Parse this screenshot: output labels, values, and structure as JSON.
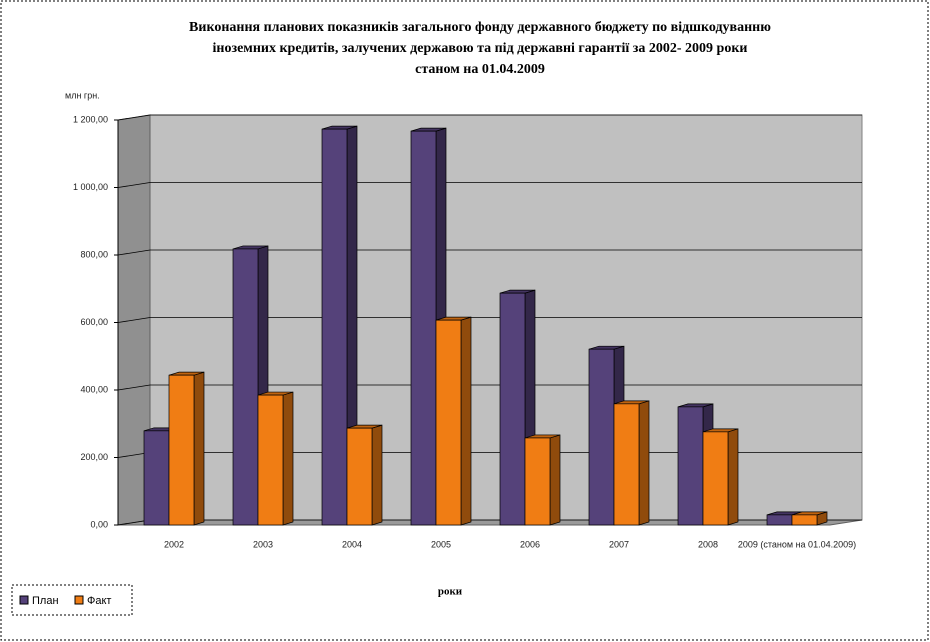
{
  "chart_data": {
    "type": "bar3d",
    "title": [
      "Виконання планових показників загального фонду державного бюджету по відшкодуванню",
      "іноземних кредитів, залучених державою та під державні гарантії за 2002- 2009 роки",
      "станом на 01.04.2009"
    ],
    "y_label": "млн грн.",
    "x_label": "роки",
    "categories": [
      "2002",
      "2003",
      "2004",
      "2005",
      "2006",
      "2007",
      "2008",
      "2009 (станом на 01.04.2009)"
    ],
    "series": [
      {
        "name": "План",
        "color": "#55427a",
        "values": [
          279,
          818,
          1173,
          1167,
          687,
          521,
          350,
          30
        ]
      },
      {
        "name": "Факт",
        "color": "#f07d14",
        "values": [
          444,
          385,
          287,
          607,
          258,
          359,
          276,
          30
        ]
      }
    ],
    "ylim": [
      0,
      1200
    ],
    "yticks": [
      {
        "value": 0,
        "label": "0,00"
      },
      {
        "value": 200,
        "label": "200,00"
      },
      {
        "value": 400,
        "label": "400,00"
      },
      {
        "value": 600,
        "label": "600,00"
      },
      {
        "value": 800,
        "label": "800,00"
      },
      {
        "value": 1000,
        "label": "1 000,00"
      },
      {
        "value": 1200,
        "label": "1 200,00"
      }
    ],
    "grid": true
  }
}
